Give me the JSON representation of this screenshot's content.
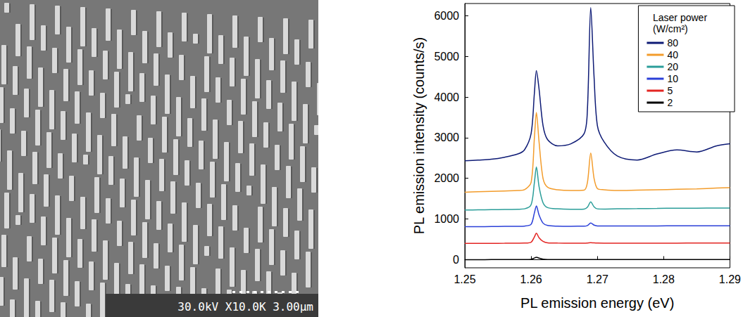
{
  "micrograph": {
    "caption": "30.0kV X10.0K 3.00µm"
  },
  "chart_data": {
    "type": "line",
    "x_label": "PL emission energy (eV)",
    "y_label": "PL emission intensity (counts/s)",
    "legend_title": "Laser power (W/cm²)",
    "legend": "upper right",
    "grid": false,
    "xlim": [
      1.25,
      1.29
    ],
    "xticks": [
      1.25,
      1.26,
      1.27,
      1.28,
      1.29
    ],
    "ylim": [
      -200,
      6300
    ],
    "yticks": [
      0,
      1000,
      2000,
      3000,
      4000,
      5000,
      6000
    ],
    "x": [
      1.25,
      1.252,
      1.254,
      1.256,
      1.258,
      1.259,
      1.26,
      1.2605,
      1.2608,
      1.2612,
      1.2618,
      1.2625,
      1.264,
      1.266,
      1.268,
      1.2685,
      1.269,
      1.2695,
      1.27,
      1.271,
      1.273,
      1.276,
      1.279,
      1.282,
      1.285,
      1.288,
      1.29
    ],
    "series": [
      {
        "name": "80",
        "color": "#0d1a75",
        "values": [
          2430,
          2450,
          2470,
          2520,
          2600,
          2700,
          3100,
          4100,
          4650,
          4200,
          3300,
          2950,
          2800,
          2850,
          3100,
          3700,
          6200,
          4500,
          3300,
          2900,
          2550,
          2450,
          2600,
          2700,
          2650,
          2800,
          2850
        ]
      },
      {
        "name": "40",
        "color": "#f39c2b",
        "values": [
          1660,
          1670,
          1680,
          1690,
          1700,
          1720,
          1900,
          3000,
          3620,
          2900,
          2000,
          1780,
          1720,
          1700,
          1710,
          1900,
          2620,
          2000,
          1750,
          1720,
          1700,
          1710,
          1720,
          1730,
          1740,
          1760,
          1770
        ]
      },
      {
        "name": "20",
        "color": "#2a9d99",
        "values": [
          1220,
          1225,
          1230,
          1235,
          1240,
          1250,
          1350,
          1900,
          2280,
          1800,
          1400,
          1280,
          1250,
          1240,
          1245,
          1290,
          1420,
          1300,
          1250,
          1245,
          1250,
          1255,
          1260,
          1265,
          1265,
          1270,
          1270
        ]
      },
      {
        "name": "10",
        "color": "#2a3fd8",
        "values": [
          810,
          812,
          815,
          818,
          820,
          825,
          870,
          1150,
          1320,
          1100,
          900,
          840,
          825,
          822,
          823,
          840,
          900,
          850,
          830,
          828,
          828,
          830,
          830,
          832,
          832,
          835,
          835
        ]
      },
      {
        "name": "5",
        "color": "#e32522",
        "values": [
          400,
          400,
          402,
          403,
          405,
          408,
          430,
          560,
          650,
          540,
          450,
          415,
          408,
          405,
          405,
          410,
          420,
          412,
          408,
          406,
          405,
          405,
          406,
          407,
          408,
          409,
          410
        ]
      },
      {
        "name": "2",
        "color": "#000000",
        "values": [
          0,
          0,
          1,
          1,
          2,
          3,
          8,
          40,
          60,
          38,
          12,
          4,
          2,
          1,
          1,
          2,
          5,
          3,
          2,
          1,
          1,
          1,
          1,
          2,
          2,
          2,
          2
        ]
      }
    ]
  }
}
